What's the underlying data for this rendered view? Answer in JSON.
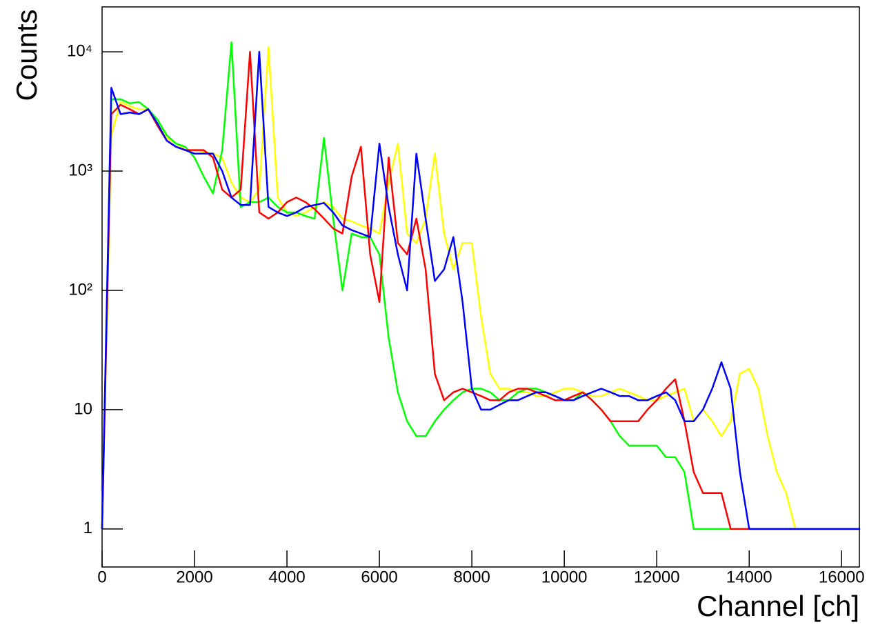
{
  "chart_data": {
    "type": "line",
    "x_label": "Channel [ch]",
    "y_label": "Counts",
    "log_y": true,
    "xlim": [
      0,
      16384
    ],
    "ylim": [
      0.48,
      23800
    ],
    "xticks": [
      0,
      2000,
      4000,
      6000,
      8000,
      10000,
      12000,
      14000,
      16000
    ],
    "yticks": [
      1,
      10,
      {
        "value": 100,
        "label": "10²"
      },
      {
        "value": 1000,
        "label": "10³"
      },
      {
        "value": 10000,
        "label": "10⁴"
      }
    ],
    "x": [
      0,
      200,
      400,
      600,
      800,
      1000,
      1200,
      1400,
      1600,
      1800,
      2000,
      2200,
      2400,
      2600,
      2800,
      3000,
      3200,
      3400,
      3600,
      3800,
      4000,
      4200,
      4400,
      4600,
      4800,
      5000,
      5200,
      5400,
      5600,
      5800,
      6000,
      6200,
      6400,
      6600,
      6800,
      7000,
      7200,
      7400,
      7600,
      7800,
      8000,
      8200,
      8400,
      8600,
      8800,
      9000,
      9200,
      9400,
      9600,
      9800,
      10000,
      10200,
      10400,
      10600,
      10800,
      11000,
      11200,
      11400,
      11600,
      11800,
      12000,
      12200,
      12400,
      12600,
      12800,
      13000,
      13200,
      13400,
      13600,
      13800,
      14000,
      14200,
      14400,
      14600,
      14800,
      15000,
      15200,
      15400,
      15600,
      15800,
      16000,
      16200,
      16400
    ],
    "series": [
      {
        "color": "#ffff00",
        "values": [
          1,
          2000,
          3800,
          3500,
          3300,
          3300,
          2500,
          1900,
          1700,
          1500,
          1500,
          1450,
          1400,
          1300,
          800,
          600,
          550,
          700,
          11000,
          600,
          450,
          420,
          450,
          500,
          550,
          500,
          400,
          380,
          350,
          330,
          300,
          800,
          1700,
          300,
          250,
          400,
          1400,
          300,
          150,
          250,
          250,
          60,
          20,
          15,
          15,
          14,
          14,
          13,
          13,
          14,
          15,
          15,
          14,
          13,
          13,
          14,
          15,
          14,
          13,
          12,
          12,
          13,
          14,
          15,
          8,
          10,
          8,
          6,
          8,
          20,
          22,
          15,
          6,
          3,
          2,
          1,
          1,
          1,
          1,
          1,
          1,
          1,
          1
        ]
      },
      {
        "color": "#00ff00",
        "values": [
          1,
          4000,
          4000,
          3700,
          3800,
          3300,
          2700,
          2000,
          1700,
          1600,
          1300,
          900,
          650,
          1500,
          12000,
          500,
          550,
          550,
          600,
          500,
          450,
          450,
          420,
          400,
          1900,
          400,
          100,
          300,
          280,
          280,
          200,
          40,
          14,
          8,
          6,
          6,
          8,
          10,
          12,
          14,
          15,
          15,
          14,
          12,
          12,
          14,
          15,
          15,
          14,
          13,
          12,
          12,
          14,
          12,
          10,
          8,
          6,
          5,
          5,
          5,
          5,
          4,
          4,
          3,
          1,
          1,
          1,
          1,
          1,
          1,
          1,
          1,
          1,
          1,
          1,
          1,
          1,
          1,
          1,
          1,
          1,
          1,
          1
        ]
      },
      {
        "color": "#ff0000",
        "values": [
          1,
          3000,
          3600,
          3300,
          3000,
          3300,
          2400,
          1800,
          1600,
          1500,
          1500,
          1500,
          1300,
          700,
          600,
          700,
          10000,
          450,
          400,
          450,
          550,
          600,
          550,
          480,
          400,
          330,
          300,
          900,
          1600,
          200,
          80,
          1300,
          250,
          200,
          400,
          150,
          20,
          12,
          14,
          15,
          14,
          13,
          12,
          12,
          14,
          15,
          15,
          14,
          13,
          12,
          12,
          13,
          14,
          12,
          10,
          8,
          8,
          8,
          8,
          10,
          12,
          15,
          18,
          8,
          3,
          2,
          2,
          2,
          1,
          1,
          1,
          1,
          1,
          1,
          1,
          1,
          1,
          1,
          1,
          1,
          1,
          1,
          1
        ]
      },
      {
        "color": "#0000ff",
        "values": [
          1,
          5000,
          3000,
          3100,
          3000,
          3300,
          2500,
          1800,
          1600,
          1500,
          1400,
          1400,
          1400,
          1000,
          600,
          520,
          520,
          10000,
          500,
          450,
          420,
          450,
          500,
          520,
          540,
          450,
          350,
          320,
          300,
          280,
          1700,
          500,
          200,
          100,
          1400,
          400,
          120,
          150,
          280,
          80,
          15,
          10,
          10,
          11,
          12,
          12,
          13,
          14,
          14,
          13,
          12,
          12,
          13,
          14,
          15,
          14,
          13,
          13,
          12,
          12,
          13,
          14,
          12,
          8,
          8,
          10,
          15,
          25,
          15,
          3,
          1,
          1,
          1,
          1,
          1,
          1,
          1,
          1,
          1,
          1,
          1,
          1,
          1
        ]
      }
    ]
  }
}
